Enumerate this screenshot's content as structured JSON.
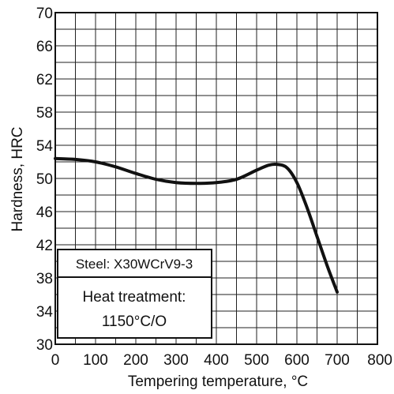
{
  "chart_data": {
    "type": "line",
    "title": "",
    "xlabel": "Tempering temperature, °C",
    "ylabel": "Hardness, HRC",
    "xlim": [
      0,
      800
    ],
    "ylim": [
      30,
      70
    ],
    "x_ticks": [
      0,
      100,
      200,
      300,
      400,
      500,
      600,
      700,
      800
    ],
    "y_ticks": [
      30,
      34,
      38,
      42,
      46,
      50,
      54,
      58,
      62,
      66,
      70
    ],
    "grid": true,
    "minor_grid_x_step": 50,
    "minor_grid_y_step": 2,
    "series": [
      {
        "x": [
          0,
          50,
          100,
          150,
          200,
          250,
          300,
          350,
          400,
          450,
          500,
          530,
          550,
          575,
          600,
          625,
          650,
          675,
          700
        ],
        "y": [
          52.4,
          52.3,
          52.0,
          51.4,
          50.6,
          49.9,
          49.5,
          49.4,
          49.5,
          49.9,
          51.0,
          51.6,
          51.7,
          51.3,
          49.5,
          46.5,
          43.0,
          39.5,
          36.3
        ]
      }
    ],
    "annotations": {
      "steel": "Steel: X30WCrV9-3",
      "heat_treatment_label": "Heat treatment:",
      "heat_treatment_value": "1150°C/O"
    }
  }
}
